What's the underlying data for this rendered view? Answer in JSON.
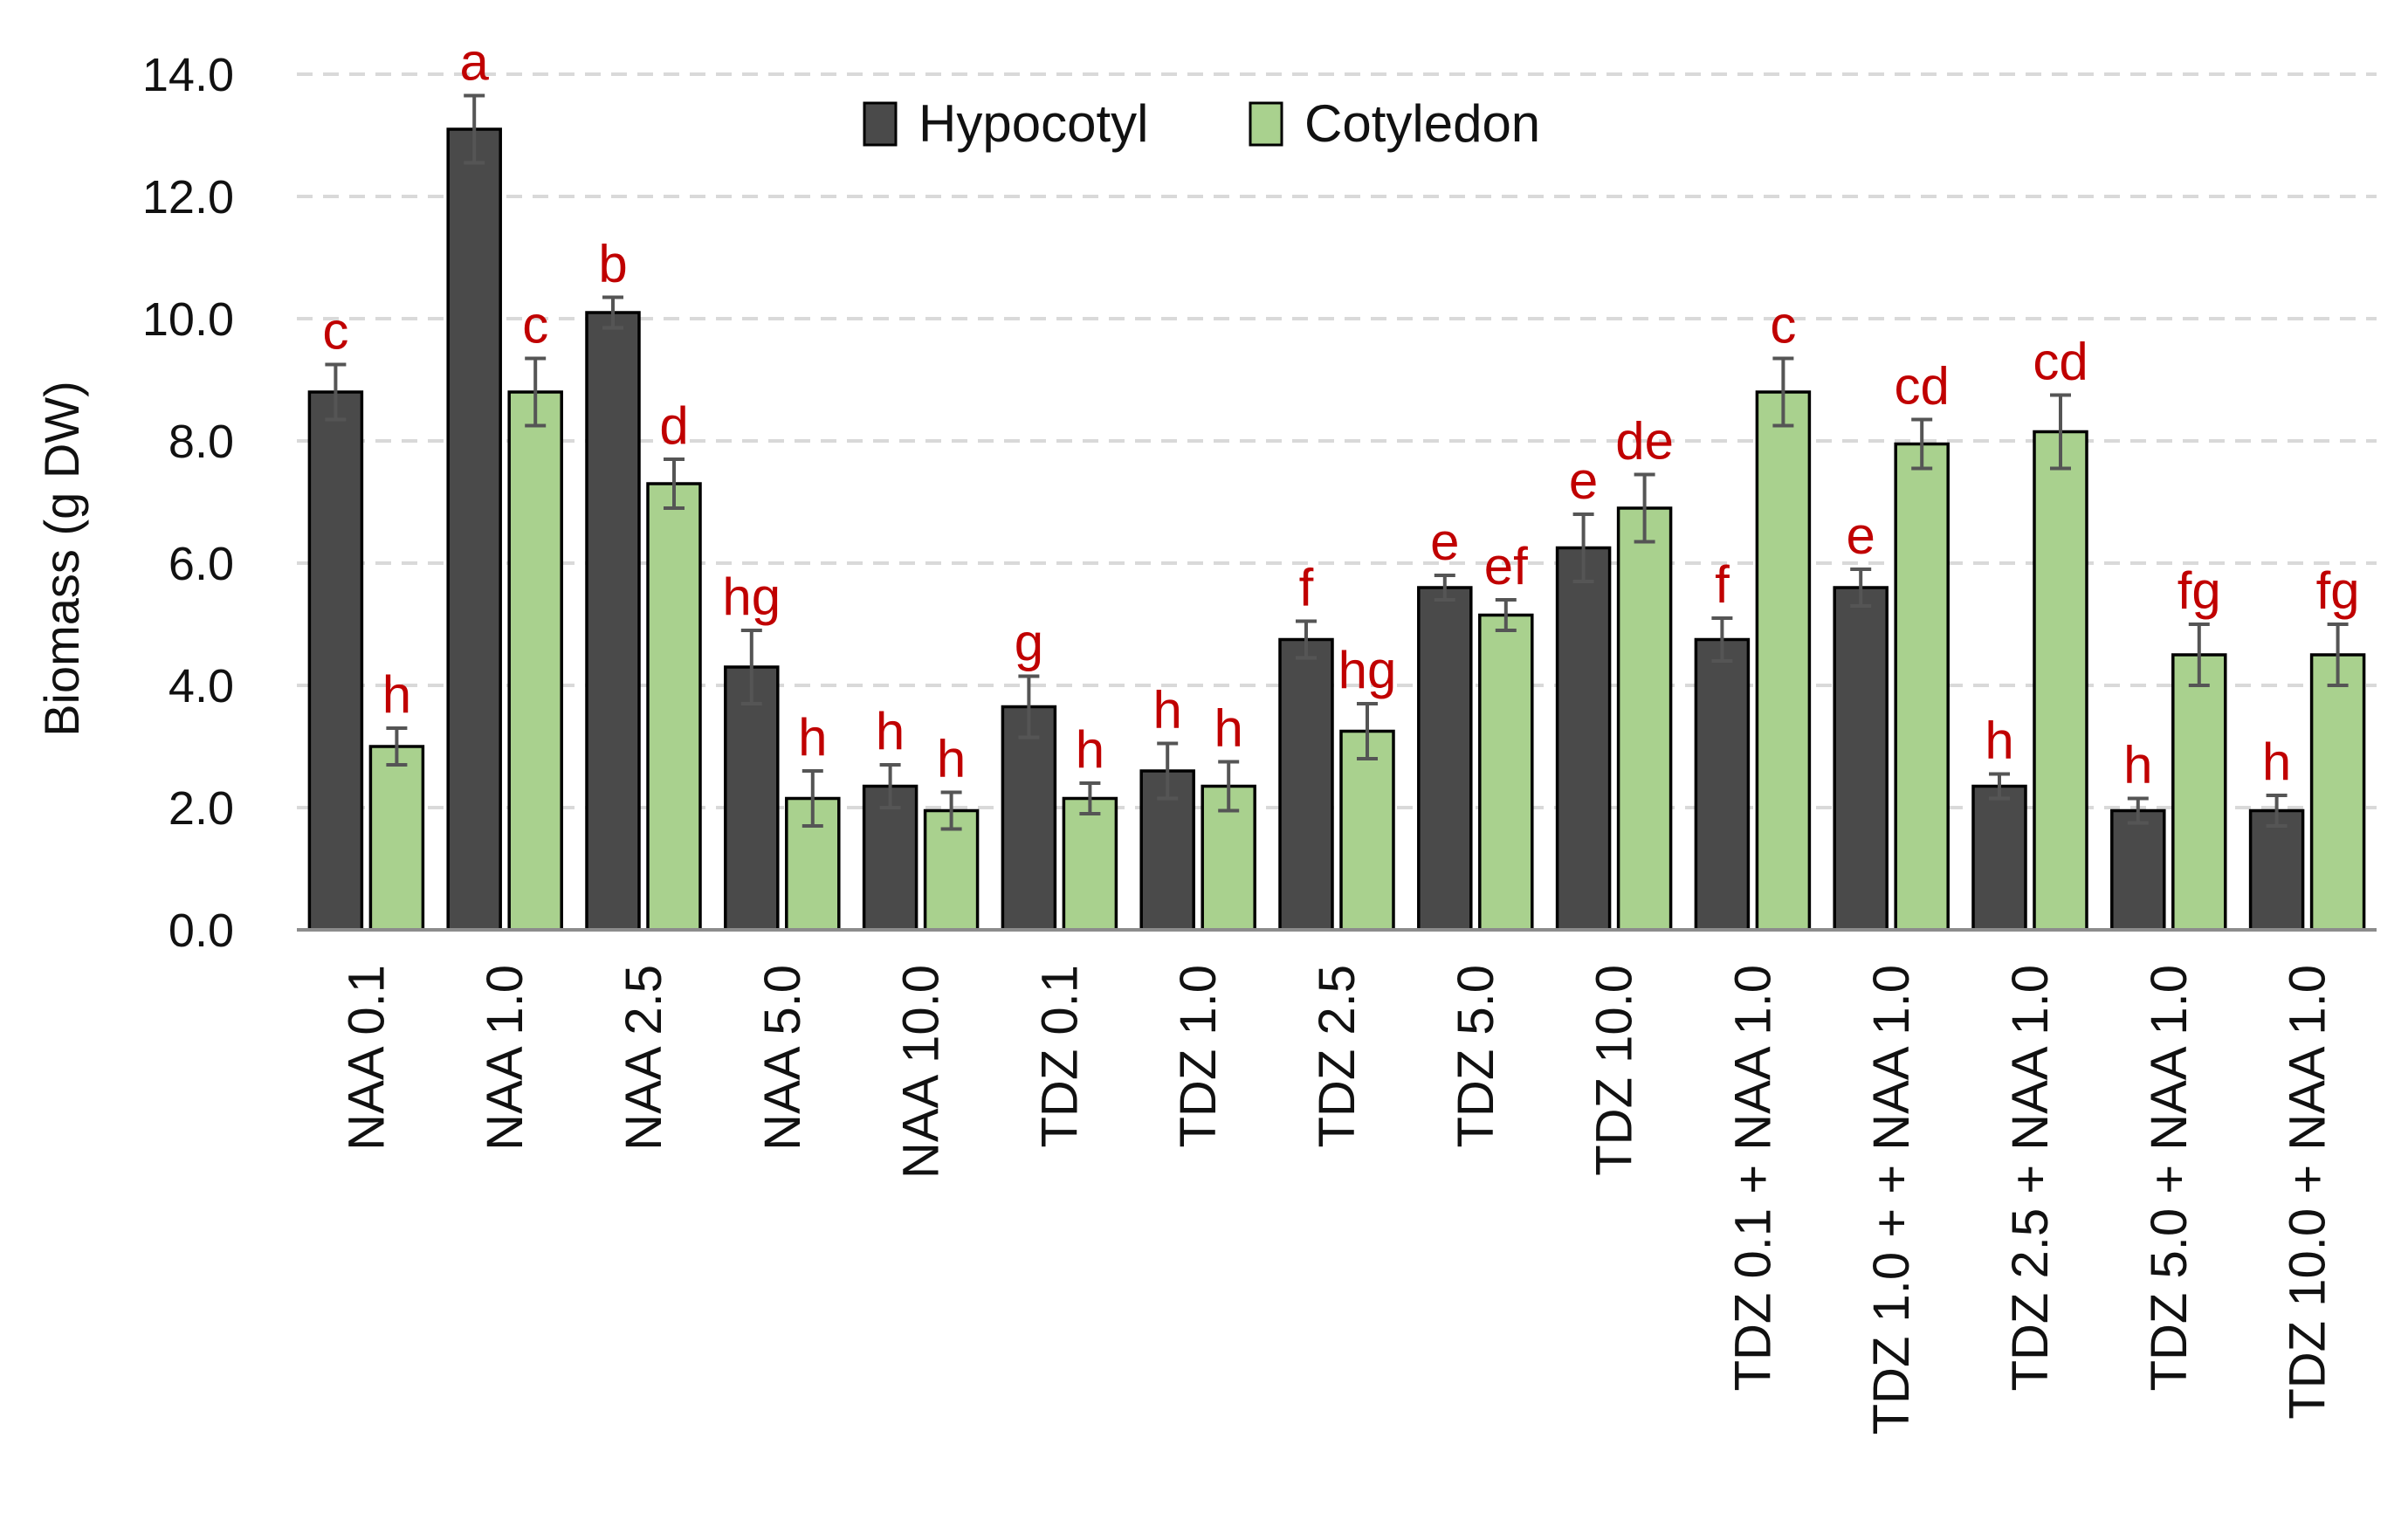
{
  "colors": {
    "hypocotyl": "#4a4a4a",
    "cotyledon": "#a9d18e",
    "significance": "#c00000",
    "grid": "#d9d9d9",
    "axis": "#8c8c8c",
    "error_bar": "#555555"
  },
  "chart_data": {
    "type": "bar",
    "title": "",
    "xlabel": "",
    "ylabel": "Biomass (g DW)",
    "ylim": [
      0,
      14
    ],
    "yticks": [
      "0.0",
      "2.0",
      "4.0",
      "6.0",
      "8.0",
      "10.0",
      "12.0",
      "14.0"
    ],
    "grid": true,
    "legend_position": "top-center",
    "categories": [
      "NAA 0.1",
      "NAA 1.0",
      "NAA 2.5",
      "NAA 5.0",
      "NAA 10.0",
      "TDZ 0.1",
      "TDZ 1.0",
      "TDZ 2.5",
      "TDZ 5.0",
      "TDZ 10.0",
      "TDZ 0.1 + NAA 1.0",
      "TDZ 1.0 + + NAA 1.0",
      "TDZ 2.5 + NAA 1.0",
      "TDZ 5.0 + NAA 1.0",
      "TDZ 10.0 + NAA 1.0"
    ],
    "series": [
      {
        "name": "Hypocotyl",
        "values": [
          8.8,
          13.1,
          10.1,
          4.3,
          2.35,
          3.65,
          2.6,
          4.75,
          5.6,
          6.25,
          4.75,
          5.6,
          2.35,
          1.95,
          1.95
        ],
        "errors": [
          0.45,
          0.55,
          0.25,
          0.6,
          0.35,
          0.5,
          0.45,
          0.3,
          0.2,
          0.55,
          0.35,
          0.3,
          0.2,
          0.2,
          0.25
        ],
        "labels": [
          "c",
          "a",
          "b",
          "hg",
          "h",
          "g",
          "h",
          "f",
          "e",
          "e",
          "f",
          "e",
          "h",
          "h",
          "h"
        ]
      },
      {
        "name": "Cotyledon",
        "values": [
          3.0,
          8.8,
          7.3,
          2.15,
          1.95,
          2.15,
          2.35,
          3.25,
          5.15,
          6.9,
          8.8,
          7.95,
          8.15,
          4.5,
          4.5
        ],
        "errors": [
          0.3,
          0.55,
          0.4,
          0.45,
          0.3,
          0.25,
          0.4,
          0.45,
          0.25,
          0.55,
          0.55,
          0.4,
          0.6,
          0.5,
          0.5
        ],
        "labels": [
          "h",
          "c",
          "d",
          "h",
          "h",
          "h",
          "h",
          "hg",
          "ef",
          "de",
          "c",
          "cd",
          "cd",
          "fg",
          "fg"
        ]
      }
    ]
  }
}
